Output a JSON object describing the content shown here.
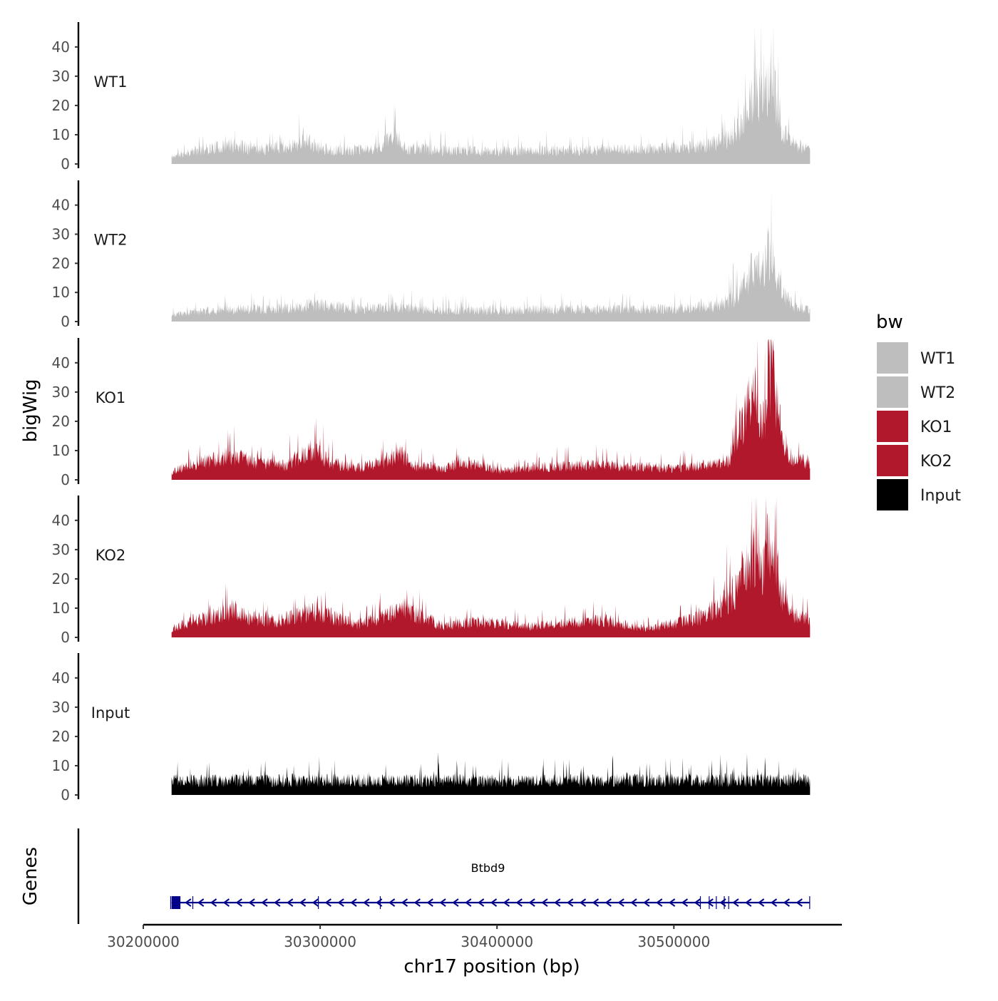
{
  "chart_data": {
    "type": "area",
    "title": "",
    "chromosome": "chr17",
    "xlabel": "chr17 position (bp)",
    "ylabel": "bigWig",
    "genes_panel_label": "Genes",
    "xlim": [
      30200000,
      30595000
    ],
    "data_range": [
      30216000,
      30577000
    ],
    "xticks": [
      30200000,
      30300000,
      30400000,
      30500000
    ],
    "xtick_labels": [
      "30200000",
      "30300000",
      "30400000",
      "30500000"
    ],
    "ylim": [
      0,
      48
    ],
    "yticks": [
      0,
      10,
      20,
      30,
      40
    ],
    "ytick_labels": [
      "0",
      "10",
      "20",
      "30",
      "40"
    ],
    "tracks": [
      {
        "name": "WT1",
        "color": "#bebebe",
        "seed": 11,
        "noise_mult": 1.05,
        "profile": [
          [
            30216000,
            2.5
          ],
          [
            30222000,
            4
          ],
          [
            30235000,
            5.5
          ],
          [
            30250000,
            7
          ],
          [
            30265000,
            5.5
          ],
          [
            30280000,
            6
          ],
          [
            30292000,
            9
          ],
          [
            30298000,
            6
          ],
          [
            30310000,
            5
          ],
          [
            30330000,
            5.5
          ],
          [
            30343000,
            10
          ],
          [
            30348000,
            6
          ],
          [
            30370000,
            5
          ],
          [
            30400000,
            4.8
          ],
          [
            30430000,
            5
          ],
          [
            30460000,
            5.2
          ],
          [
            30490000,
            5.5
          ],
          [
            30515000,
            6.5
          ],
          [
            30530000,
            9
          ],
          [
            30538000,
            14
          ],
          [
            30543000,
            24
          ],
          [
            30548000,
            27
          ],
          [
            30551000,
            22
          ],
          [
            30554000,
            31
          ],
          [
            30557000,
            27
          ],
          [
            30561000,
            13
          ],
          [
            30566000,
            8
          ],
          [
            30577000,
            5
          ]
        ]
      },
      {
        "name": "WT2",
        "color": "#bebebe",
        "seed": 23,
        "noise_mult": 1.0,
        "profile": [
          [
            30216000,
            2.5
          ],
          [
            30230000,
            4
          ],
          [
            30255000,
            5
          ],
          [
            30275000,
            4.5
          ],
          [
            30290000,
            6
          ],
          [
            30300000,
            6.5
          ],
          [
            30320000,
            5
          ],
          [
            30345000,
            5.5
          ],
          [
            30370000,
            4.5
          ],
          [
            30410000,
            4.5
          ],
          [
            30440000,
            4.8
          ],
          [
            30470000,
            4.8
          ],
          [
            30500000,
            5
          ],
          [
            30525000,
            6
          ],
          [
            30536000,
            10
          ],
          [
            30543000,
            19
          ],
          [
            30547000,
            23
          ],
          [
            30550000,
            18
          ],
          [
            30553000,
            27
          ],
          [
            30556000,
            23
          ],
          [
            30561000,
            11
          ],
          [
            30568000,
            6
          ],
          [
            30577000,
            4.5
          ]
        ]
      },
      {
        "name": "KO1",
        "color": "#b2182b",
        "seed": 37,
        "noise_mult": 1.15,
        "profile": [
          [
            30216000,
            2.5
          ],
          [
            30225000,
            5
          ],
          [
            30238000,
            6.5
          ],
          [
            30250000,
            8.5
          ],
          [
            30262000,
            6
          ],
          [
            30280000,
            5
          ],
          [
            30290000,
            8.5
          ],
          [
            30296000,
            10
          ],
          [
            30305000,
            6
          ],
          [
            30320000,
            4
          ],
          [
            30335000,
            6
          ],
          [
            30345000,
            9
          ],
          [
            30352000,
            5
          ],
          [
            30370000,
            4
          ],
          [
            30380000,
            6
          ],
          [
            30395000,
            4
          ],
          [
            30405000,
            3
          ],
          [
            30425000,
            4.5
          ],
          [
            30450000,
            5
          ],
          [
            30480000,
            4.5
          ],
          [
            30500000,
            4
          ],
          [
            30520000,
            5
          ],
          [
            30532000,
            7
          ],
          [
            30538000,
            18
          ],
          [
            30543000,
            28
          ],
          [
            30548000,
            25
          ],
          [
            30551000,
            19
          ],
          [
            30554000,
            38
          ],
          [
            30557000,
            33
          ],
          [
            30561000,
            14
          ],
          [
            30567000,
            7
          ],
          [
            30577000,
            6
          ]
        ]
      },
      {
        "name": "KO2",
        "color": "#b2182b",
        "seed": 53,
        "noise_mult": 1.1,
        "profile": [
          [
            30216000,
            3
          ],
          [
            30228000,
            6
          ],
          [
            30240000,
            7.5
          ],
          [
            30250000,
            10
          ],
          [
            30260000,
            7
          ],
          [
            30275000,
            6
          ],
          [
            30288000,
            8
          ],
          [
            30298000,
            9.5
          ],
          [
            30308000,
            7
          ],
          [
            30320000,
            4.5
          ],
          [
            30335000,
            7
          ],
          [
            30348000,
            10
          ],
          [
            30358000,
            7
          ],
          [
            30370000,
            4
          ],
          [
            30385000,
            5.5
          ],
          [
            30400000,
            5
          ],
          [
            30420000,
            4
          ],
          [
            30440000,
            5.5
          ],
          [
            30460000,
            6
          ],
          [
            30475000,
            4
          ],
          [
            30485000,
            3
          ],
          [
            30500000,
            5
          ],
          [
            30515000,
            7
          ],
          [
            30530000,
            13
          ],
          [
            30536000,
            18
          ],
          [
            30542000,
            28
          ],
          [
            30546000,
            30
          ],
          [
            30550000,
            20
          ],
          [
            30554000,
            37
          ],
          [
            30557000,
            31
          ],
          [
            30561000,
            15
          ],
          [
            30567000,
            8
          ],
          [
            30577000,
            6
          ]
        ]
      },
      {
        "name": "Input",
        "color": "#000000",
        "seed": 71,
        "noise_mult": 1.0,
        "profile": [
          [
            30216000,
            5.5
          ],
          [
            30300000,
            5.8
          ],
          [
            30400000,
            5.5
          ],
          [
            30500000,
            5.8
          ],
          [
            30577000,
            5.5
          ]
        ]
      }
    ],
    "legend": {
      "title": "bw",
      "position": "right",
      "entries": [
        {
          "label": "WT1",
          "color": "#bebebe"
        },
        {
          "label": "WT2",
          "color": "#bebebe"
        },
        {
          "label": "KO1",
          "color": "#b2182b"
        },
        {
          "label": "KO2",
          "color": "#b2182b"
        },
        {
          "label": "Input",
          "color": "#000000"
        }
      ]
    },
    "gene": {
      "name": "Btbd9",
      "strand": "-",
      "color": "#00008b",
      "start": 30216000,
      "end": 30577000,
      "thick_block": [
        30216000,
        30221000
      ],
      "arrow_spacing_bp": 7200,
      "exons": [
        30215500,
        30228000,
        30299000,
        30334000,
        30515000,
        30520000,
        30524000,
        30528500,
        30531000,
        30576800
      ]
    }
  }
}
